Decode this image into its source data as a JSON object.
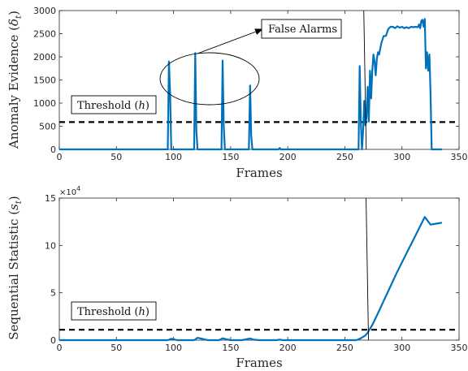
{
  "chart_data": [
    {
      "type": "line",
      "xlabel": "Frames",
      "ylabel": "Anomaly Evidence (δ_t)",
      "ylabel_main": "Anomaly Evidence (",
      "ylabel_sym": "δ",
      "ylabel_sub": "t",
      "ylabel_close": ")",
      "xlim": [
        0,
        350
      ],
      "ylim": [
        0,
        3000
      ],
      "xticks": [
        0,
        50,
        100,
        150,
        200,
        250,
        300,
        350
      ],
      "yticks": [
        0,
        500,
        1000,
        1500,
        2000,
        2500,
        3000
      ],
      "threshold": 590,
      "threshold_label_main": "Threshold (",
      "threshold_label_sym": "h",
      "threshold_label_close": ")",
      "annotation": "False Alarms",
      "change_point": 268,
      "series": [
        {
          "color": "#0072BD",
          "x": [
            0,
            95,
            96,
            97,
            98,
            99,
            118,
            119,
            120,
            121,
            122,
            142,
            143,
            144,
            145,
            146,
            166,
            167,
            168,
            169,
            170,
            192,
            193,
            194,
            262,
            263,
            264,
            265,
            266,
            267,
            268,
            269,
            270,
            271,
            272,
            273,
            274,
            275,
            276,
            277,
            278,
            279,
            280,
            282,
            284,
            286,
            288,
            290,
            292,
            294,
            296,
            298,
            300,
            302,
            304,
            306,
            308,
            310,
            312,
            314,
            315,
            316,
            317,
            318,
            319,
            320,
            321,
            322,
            323,
            324,
            325,
            326,
            327,
            328,
            330,
            333,
            335
          ],
          "y": [
            0,
            0,
            1900,
            1200,
            0,
            0,
            0,
            2080,
            400,
            0,
            0,
            0,
            1920,
            500,
            0,
            0,
            0,
            1380,
            300,
            0,
            0,
            0,
            30,
            0,
            0,
            1800,
            600,
            0,
            400,
            1050,
            520,
            700,
            1350,
            600,
            1700,
            1100,
            1700,
            2050,
            1900,
            1600,
            1950,
            2100,
            2050,
            2300,
            2450,
            2450,
            2600,
            2650,
            2650,
            2620,
            2660,
            2630,
            2650,
            2620,
            2640,
            2620,
            2650,
            2640,
            2650,
            2640,
            2700,
            2620,
            2780,
            2800,
            2650,
            2820,
            1750,
            2100,
            1700,
            2050,
            1200,
            0,
            0,
            0,
            0,
            0,
            0
          ]
        }
      ]
    },
    {
      "type": "line",
      "xlabel": "Frames",
      "ylabel": "Sequential Statistic (s_t)",
      "ylabel_main": "Sequential Statistic (",
      "ylabel_sym": "s",
      "ylabel_sub": "t",
      "ylabel_close": ")",
      "xlim": [
        0,
        350
      ],
      "ylim": [
        0,
        15
      ],
      "xticks": [
        0,
        50,
        100,
        150,
        200,
        250,
        300,
        350
      ],
      "yticks": [
        0,
        5,
        10,
        15
      ],
      "y_multiplier_base": "×10",
      "y_multiplier_exp": "4",
      "threshold": 1.1,
      "threshold_label_main": "Threshold (",
      "threshold_label_sym": "h",
      "threshold_label_close": ")",
      "change_point": 270,
      "series": [
        {
          "color": "#0072BD",
          "x": [
            0,
            95,
            98,
            100,
            103,
            110,
            118,
            121,
            125,
            130,
            140,
            143,
            146,
            150,
            160,
            167,
            170,
            175,
            190,
            193,
            196,
            200,
            240,
            260,
            264,
            266,
            268,
            270,
            272,
            274,
            276,
            278,
            280,
            285,
            290,
            295,
            300,
            305,
            310,
            315,
            320,
            325,
            330,
            335
          ],
          "y": [
            0,
            0,
            0.15,
            0.1,
            0,
            0,
            0,
            0.25,
            0.15,
            0,
            0,
            0.2,
            0.1,
            0,
            0,
            0.18,
            0.05,
            0,
            0,
            0.05,
            0,
            0,
            0,
            0,
            0.2,
            0.35,
            0.5,
            0.8,
            1.2,
            1.6,
            2.1,
            2.6,
            3.1,
            4.4,
            5.7,
            7.0,
            8.2,
            9.4,
            10.6,
            11.8,
            13.0,
            12.2,
            12.3,
            12.4
          ]
        }
      ]
    }
  ]
}
